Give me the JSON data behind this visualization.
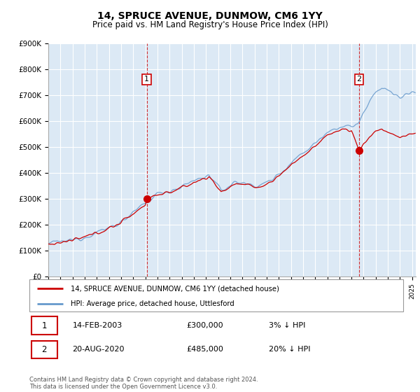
{
  "title": "14, SPRUCE AVENUE, DUNMOW, CM6 1YY",
  "subtitle": "Price paid vs. HM Land Registry's House Price Index (HPI)",
  "ylabel_ticks": [
    "£0",
    "£100K",
    "£200K",
    "£300K",
    "£400K",
    "£500K",
    "£600K",
    "£700K",
    "£800K",
    "£900K"
  ],
  "ylim": [
    0,
    900000
  ],
  "xlim_start": 1995.0,
  "xlim_end": 2025.3,
  "sale1_date": 2003.12,
  "sale1_price": 300000,
  "sale2_date": 2020.63,
  "sale2_price": 485000,
  "legend_line1": "14, SPRUCE AVENUE, DUNMOW, CM6 1YY (detached house)",
  "legend_line2": "HPI: Average price, detached house, Uttlesford",
  "line_color_red": "#cc0000",
  "line_color_blue": "#6699cc",
  "chart_bg_color": "#dce9f5",
  "background_color": "#ffffff",
  "grid_color": "#ffffff",
  "annotation_box_color": "#cc0000",
  "footnote": "Contains HM Land Registry data © Crown copyright and database right 2024.\nThis data is licensed under the Open Government Licence v3.0."
}
